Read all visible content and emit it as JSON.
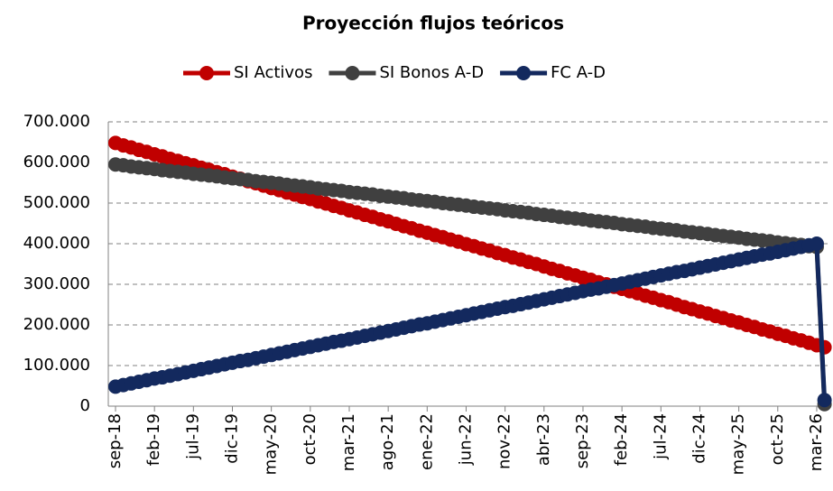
{
  "chart_data": {
    "type": "line",
    "title": "Proyección flujos teóricos",
    "categories": [
      "sep-18",
      null,
      null,
      null,
      null,
      "feb-19",
      null,
      null,
      null,
      null,
      "jul-19",
      null,
      null,
      null,
      null,
      "dic-19",
      null,
      null,
      null,
      null,
      "may-20",
      null,
      null,
      null,
      null,
      "oct-20",
      null,
      null,
      null,
      null,
      "mar-21",
      null,
      null,
      null,
      null,
      "ago-21",
      null,
      null,
      null,
      null,
      "ene-22",
      null,
      null,
      null,
      null,
      "jun-22",
      null,
      null,
      null,
      null,
      "nov-22",
      null,
      null,
      null,
      null,
      "abr-23",
      null,
      null,
      null,
      null,
      "sep-23",
      null,
      null,
      null,
      null,
      "feb-24",
      null,
      null,
      null,
      null,
      "jul-24",
      null,
      null,
      null,
      null,
      "dic-24",
      null,
      null,
      null,
      null,
      "may-25",
      null,
      null,
      null,
      null,
      "oct-25",
      null,
      null,
      null,
      null,
      "mar-26",
      null
    ],
    "series": [
      {
        "name": "SI Activos",
        "color": "#c00000",
        "values": [
          648000,
          642000,
          637000,
          631000,
          626000,
          620000,
          615000,
          609000,
          604000,
          598000,
          593000,
          587000,
          582000,
          576000,
          571000,
          565000,
          560000,
          554000,
          549000,
          543000,
          537000,
          532000,
          526000,
          521000,
          515000,
          510000,
          504000,
          499000,
          493000,
          488000,
          482000,
          477000,
          471000,
          466000,
          460000,
          455000,
          449000,
          443000,
          438000,
          432000,
          427000,
          421000,
          416000,
          410000,
          405000,
          399000,
          394000,
          388000,
          383000,
          377000,
          372000,
          366000,
          361000,
          355000,
          350000,
          344000,
          338000,
          333000,
          327000,
          322000,
          316000,
          311000,
          305000,
          300000,
          294000,
          289000,
          283000,
          278000,
          272000,
          267000,
          261000,
          256000,
          250000,
          244000,
          239000,
          233000,
          228000,
          222000,
          217000,
          211000,
          206000,
          200000,
          195000,
          189000,
          184000,
          178000,
          173000,
          167000,
          162000,
          156000,
          150000,
          145000
        ]
      },
      {
        "name": "SI Bonos A-D",
        "color": "#404040",
        "values": [
          595000,
          593000,
          590000,
          588000,
          586000,
          584000,
          581000,
          579000,
          577000,
          575000,
          572000,
          570000,
          568000,
          566000,
          563000,
          561000,
          559000,
          557000,
          554000,
          552000,
          550000,
          548000,
          545000,
          543000,
          541000,
          539000,
          536000,
          534000,
          532000,
          530000,
          527000,
          525000,
          523000,
          521000,
          518000,
          516000,
          514000,
          512000,
          509000,
          507000,
          505000,
          503000,
          500000,
          498000,
          496000,
          494000,
          491000,
          489000,
          487000,
          485000,
          482000,
          480000,
          478000,
          476000,
          473000,
          471000,
          469000,
          466000,
          464000,
          462000,
          460000,
          457000,
          455000,
          453000,
          451000,
          448000,
          446000,
          444000,
          442000,
          439000,
          437000,
          435000,
          433000,
          430000,
          428000,
          426000,
          424000,
          421000,
          419000,
          417000,
          415000,
          412000,
          410000,
          408000,
          406000,
          403000,
          401000,
          399000,
          397000,
          394000,
          392000,
          5000
        ]
      },
      {
        "name": "FC A-D",
        "color": "#13295e",
        "values": [
          48000,
          52000,
          56000,
          60000,
          64000,
          68000,
          71000,
          75000,
          79000,
          83000,
          87000,
          91000,
          95000,
          99000,
          103000,
          107000,
          111000,
          114000,
          118000,
          122000,
          126000,
          130000,
          134000,
          138000,
          142000,
          146000,
          150000,
          154000,
          158000,
          161000,
          165000,
          169000,
          173000,
          177000,
          181000,
          185000,
          189000,
          193000,
          197000,
          201000,
          204000,
          208000,
          212000,
          216000,
          220000,
          224000,
          228000,
          232000,
          236000,
          240000,
          244000,
          247000,
          251000,
          255000,
          259000,
          263000,
          267000,
          271000,
          275000,
          279000,
          283000,
          287000,
          290000,
          294000,
          298000,
          302000,
          306000,
          310000,
          314000,
          318000,
          322000,
          326000,
          330000,
          333000,
          337000,
          341000,
          345000,
          349000,
          353000,
          357000,
          361000,
          365000,
          369000,
          373000,
          376000,
          380000,
          384000,
          388000,
          392000,
          396000,
          400000,
          15000
        ]
      }
    ],
    "ylim": [
      0,
      700000
    ],
    "yticks": [
      0,
      {
        "value": 100000,
        "label": "100.000"
      },
      {
        "value": 200000,
        "label": "200.000"
      },
      {
        "value": 300000,
        "label": "300.000"
      },
      {
        "value": 400000,
        "label": "400.000"
      },
      {
        "value": 500000,
        "label": "500.000"
      },
      {
        "value": 600000,
        "label": "600.000"
      },
      {
        "value": 700000,
        "label": "700.000"
      }
    ],
    "grid": true,
    "legend": "top"
  }
}
